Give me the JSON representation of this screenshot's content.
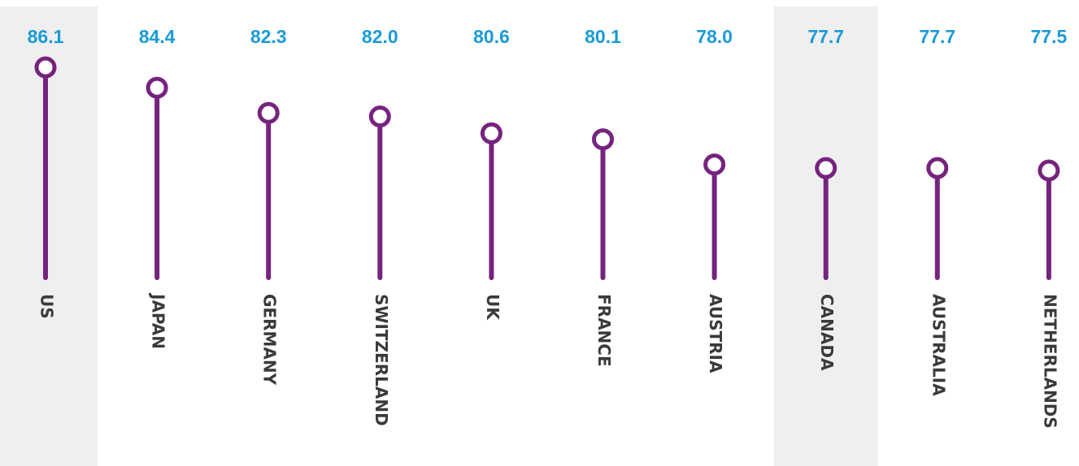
{
  "chart_data": {
    "type": "lollipop",
    "categories": [
      "US",
      "JAPAN",
      "GERMANY",
      "SWITZERLAND",
      "UK",
      "FRANCE",
      "AUSTRIA",
      "CANADA",
      "AUSTRALIA",
      "NETHERLANDS"
    ],
    "values": [
      86.1,
      84.4,
      82.3,
      82.0,
      80.6,
      80.1,
      78.0,
      77.7,
      77.7,
      77.5
    ],
    "value_labels": [
      "86.1",
      "84.4",
      "82.3",
      "82.0",
      "80.6",
      "80.1",
      "78.0",
      "77.7",
      "77.7",
      "77.5"
    ],
    "highlighted": [
      "US",
      "CANADA"
    ],
    "title": "",
    "xlabel": "",
    "ylabel": "",
    "colors": {
      "stem": "#76237e",
      "value_label": "#1a9bd7",
      "category_label": "#3a3a3a",
      "highlight_band": "#efefef",
      "marker_fill": "#ffffff"
    }
  }
}
